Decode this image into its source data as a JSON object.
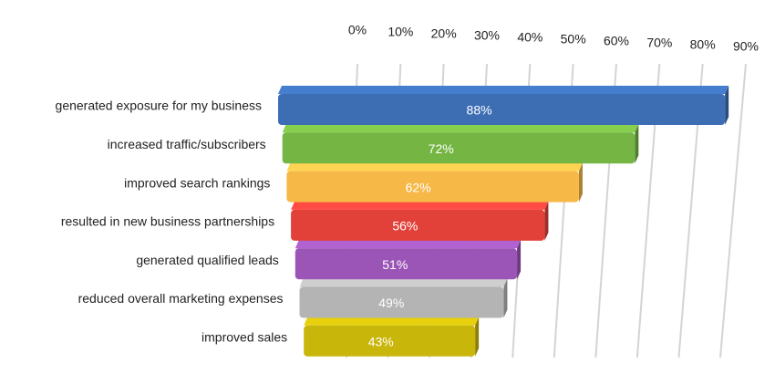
{
  "chart_data": {
    "type": "bar3d",
    "categories": [
      "generated exposure for my business",
      "increased traffic/subscribers",
      "improved search rankings",
      "resulted in new business partnerships",
      "generated qualified leads",
      "reduced overall marketing expenses",
      "improved sales"
    ],
    "values": [
      88,
      72,
      62,
      56,
      51,
      49,
      43
    ],
    "value_labels": [
      "88%",
      "72%",
      "62%",
      "56%",
      "51%",
      "49%",
      "43%"
    ],
    "colors": [
      "#3d6eb4",
      "#75b543",
      "#f6b847",
      "#e2413a",
      "#9a55b6",
      "#b4b4b4",
      "#c9b60a"
    ],
    "xlim": [
      0,
      90
    ],
    "xticks": [
      {
        "value": 0,
        "label": "0%"
      },
      {
        "value": 10,
        "label": "10%"
      },
      {
        "value": 20,
        "label": "20%"
      },
      {
        "value": 30,
        "label": "30%"
      },
      {
        "value": 40,
        "label": "40%"
      },
      {
        "value": 50,
        "label": "50%"
      },
      {
        "value": 60,
        "label": "60%"
      },
      {
        "value": 70,
        "label": "70%"
      },
      {
        "value": 80,
        "label": "80%"
      },
      {
        "value": 90,
        "label": "90%"
      }
    ],
    "grid": true
  }
}
